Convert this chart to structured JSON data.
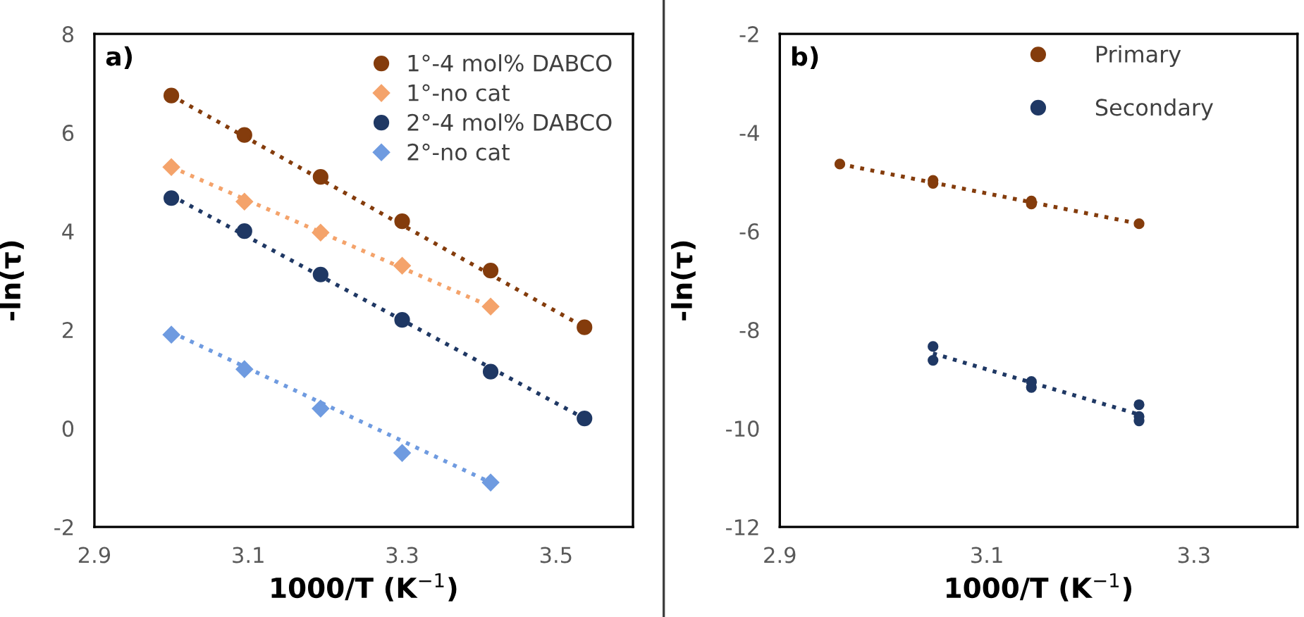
{
  "chart_data": [
    {
      "type": "scatter",
      "title": "a)",
      "xlabel": "1000/T (K$^{−1}$)",
      "ylabel": "-ln(τ)",
      "xlim": [
        2.9,
        3.6
      ],
      "xticks": [
        2.9,
        3.1,
        3.3,
        3.5
      ],
      "ylim": [
        -2,
        8
      ],
      "yticks": [
        -2,
        0,
        2,
        4,
        6,
        8
      ],
      "grid": false,
      "legend": "top right",
      "series": [
        {
          "name": "1°-4 mol% DABCO",
          "color": "#843c0c",
          "marker": "circle",
          "x": [
            3.0,
            3.095,
            3.194,
            3.3,
            3.415,
            3.537
          ],
          "values": [
            6.75,
            5.95,
            5.1,
            4.2,
            3.2,
            2.05
          ]
        },
        {
          "name": "1°-no cat",
          "color": "#f4a36b",
          "marker": "diamond",
          "x": [
            3.0,
            3.095,
            3.194,
            3.3,
            3.415
          ],
          "values": [
            5.3,
            4.6,
            3.97,
            3.3,
            2.47
          ]
        },
        {
          "name": "2°-4 mol% DABCO",
          "color": "#1f3864",
          "marker": "circle",
          "x": [
            3.0,
            3.095,
            3.194,
            3.3,
            3.415,
            3.537
          ],
          "values": [
            4.67,
            4.0,
            3.12,
            2.2,
            1.15,
            0.2
          ]
        },
        {
          "name": "2°-no cat",
          "color": "#6f9be0",
          "marker": "diamond",
          "x": [
            3.0,
            3.095,
            3.194,
            3.3,
            3.415
          ],
          "values": [
            1.9,
            1.2,
            0.4,
            -0.5,
            -1.1
          ]
        },
        {
          "type": "line",
          "color": "#843c0c",
          "marker": "none",
          "line_style": "dotted",
          "x": [
            3.0,
            3.537
          ],
          "values": [
            6.75,
            2.05
          ]
        },
        {
          "type": "line",
          "color": "#f4a36b",
          "marker": "none",
          "line_style": "dotted",
          "x": [
            3.0,
            3.415
          ],
          "values": [
            5.3,
            2.47
          ]
        },
        {
          "type": "line",
          "color": "#1f3864",
          "marker": "none",
          "line_style": "dotted",
          "x": [
            3.0,
            3.537
          ],
          "values": [
            4.72,
            0.2
          ]
        },
        {
          "type": "line",
          "color": "#6f9be0",
          "marker": "none",
          "line_style": "dotted",
          "x": [
            3.0,
            3.415
          ],
          "values": [
            1.95,
            -1.1
          ]
        }
      ]
    },
    {
      "type": "scatter",
      "title": "b)",
      "xlabel": "1000/T (K$^{−1}$)",
      "ylabel": "-ln(τ)",
      "xlim": [
        2.9,
        3.4
      ],
      "xticks": [
        2.9,
        3.1,
        3.3
      ],
      "ylim": [
        -12,
        -2
      ],
      "yticks": [
        -12,
        -10,
        -8,
        -6,
        -4,
        -2
      ],
      "grid": false,
      "legend": "top right",
      "series": [
        {
          "name": "Primary",
          "color": "#843c0c",
          "marker": "circle",
          "x": [
            2.958,
            3.048,
            3.048,
            3.143,
            3.143,
            3.247
          ],
          "values": [
            -4.64,
            -4.97,
            -5.03,
            -5.39,
            -5.45,
            -5.85
          ]
        },
        {
          "name": "Secondary",
          "color": "#1f3864",
          "marker": "circle",
          "x": [
            3.048,
            3.048,
            3.143,
            3.143,
            3.247,
            3.247,
            3.247
          ],
          "values": [
            -8.34,
            -8.62,
            -9.05,
            -9.17,
            -9.52,
            -9.76,
            -9.85
          ]
        },
        {
          "type": "line",
          "color": "#843c0c",
          "marker": "none",
          "line_style": "dotted",
          "x": [
            2.958,
            3.247
          ],
          "values": [
            -4.64,
            -5.85
          ]
        },
        {
          "type": "line",
          "color": "#1f3864",
          "marker": "none",
          "line_style": "dotted",
          "x": [
            3.048,
            3.247
          ],
          "values": [
            -8.48,
            -9.72
          ]
        }
      ]
    }
  ]
}
